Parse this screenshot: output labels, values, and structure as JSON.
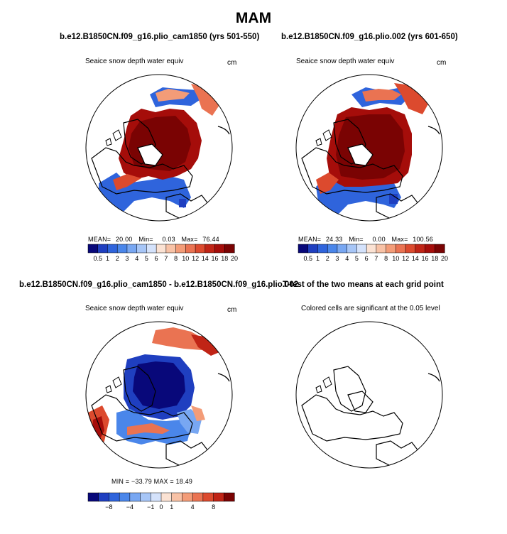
{
  "title": "MAM",
  "palette": {
    "full": [
      "#08087a",
      "#1f3fc0",
      "#2f64dc",
      "#4a86ea",
      "#78a7f2",
      "#a7c6f7",
      "#d4e2fb",
      "#fbe2d3",
      "#f8c2a6",
      "#f39c78",
      "#ea7352",
      "#dc4a2e",
      "#c02416",
      "#a50d0a",
      "#7a0303"
    ],
    "diff": [
      "#08087a",
      "#1f3fc0",
      "#2f64dc",
      "#4a86ea",
      "#78a7f2",
      "#a7c6f7",
      "#d4e2fb",
      "#fbe2d3",
      "#f8c2a6",
      "#f39c78",
      "#ea7352",
      "#dc4a2e",
      "#c02416",
      "#7a0303"
    ]
  },
  "panels": {
    "p1": {
      "title": "b.e12.B1850CN.f09_g16.plio_cam1850 (yrs 501-550)",
      "var": "Seaice snow depth water equiv",
      "units": "cm",
      "stats": {
        "mean_label": "MEAN=",
        "mean": "20.00",
        "min_label": "Min=",
        "min": "0.03",
        "max_label": "Max=",
        "max": "76.44"
      },
      "ticks": [
        "0.5",
        "1",
        "2",
        "3",
        "4",
        "5",
        "6",
        "7",
        "8",
        "10",
        "12",
        "14",
        "16",
        "18",
        "20"
      ]
    },
    "p2": {
      "title": "b.e12.B1850CN.f09_g16.plio.002 (yrs 601-650)",
      "var": "Seaice snow depth water equiv",
      "units": "cm",
      "stats": {
        "mean_label": "MEAN=",
        "mean": "24.33",
        "min_label": "Min=",
        "min": "0.00",
        "max_label": "Max=",
        "max": "100.56"
      },
      "ticks": [
        "0.5",
        "1",
        "2",
        "3",
        "4",
        "5",
        "6",
        "7",
        "8",
        "10",
        "12",
        "14",
        "16",
        "18",
        "20"
      ]
    },
    "p3": {
      "title": "b.e12.B1850CN.f09_g16.plio_cam1850 - b.e12.B1850CN.f09_g16.plio.002",
      "var": "Seaice snow depth water equiv",
      "units": "cm",
      "stats_line": "MIN = −33.79  MAX =  18.49",
      "ticks": [
        "−8",
        "−4",
        "−1",
        "0",
        "1",
        "4",
        "8"
      ]
    },
    "p4": {
      "title": "T-test of the two means at each grid point",
      "subtitle": "Colored cells are significant at the 0.05 level"
    }
  },
  "chart_data": [
    {
      "type": "heatmap",
      "title": "b.e12.B1850CN.f09_g16.plio_cam1850 (yrs 501-550)",
      "variable": "Seaice snow depth water equiv",
      "units": "cm",
      "levels": [
        0.5,
        1,
        2,
        3,
        4,
        5,
        6,
        7,
        8,
        10,
        12,
        14,
        16,
        18,
        20
      ],
      "mean": 20.0,
      "min": 0.03,
      "max": 76.44
    },
    {
      "type": "heatmap",
      "title": "b.e12.B1850CN.f09_g16.plio.002 (yrs 601-650)",
      "variable": "Seaice snow depth water equiv",
      "units": "cm",
      "levels": [
        0.5,
        1,
        2,
        3,
        4,
        5,
        6,
        7,
        8,
        10,
        12,
        14,
        16,
        18,
        20
      ],
      "mean": 24.33,
      "min": 0.0,
      "max": 100.56
    },
    {
      "type": "heatmap",
      "title": "b.e12.B1850CN.f09_g16.plio_cam1850 - b.e12.B1850CN.f09_g16.plio.002",
      "variable": "Seaice snow depth water equiv",
      "units": "cm",
      "levels": [
        -8,
        -4,
        -1,
        0,
        1,
        4,
        8
      ],
      "min": -33.79,
      "max": 18.49
    },
    {
      "type": "heatmap",
      "title": "T-test of the two means at each grid point",
      "subtitle": "Colored cells are significant at the 0.05 level"
    }
  ]
}
